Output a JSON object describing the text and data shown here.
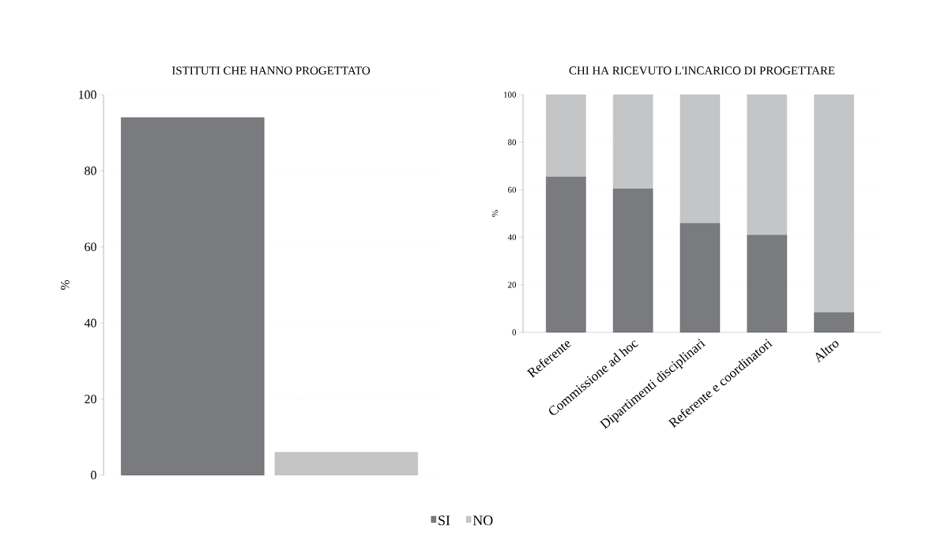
{
  "chart_data": [
    {
      "type": "bar",
      "title": "ISTITUTI CHE HANNO PROGETTATO",
      "ylabel": "%",
      "categories": [
        null,
        null
      ],
      "values": [
        94,
        6
      ],
      "colors": [
        "#7a7b7f",
        "#c4c5c7"
      ],
      "ylim": [
        0,
        100
      ],
      "yticks": [
        0,
        20,
        40,
        60,
        80,
        100
      ],
      "grid": "y",
      "tick_labels": "y"
    },
    {
      "type": "bar",
      "title": "CHI HA RICEVUTO L'INCARICO DI PROGETTARE",
      "ylabel": "%",
      "categories": [
        "Referente",
        "Commissione ad hoc",
        "Dipartimenti disciplinari",
        "Referente e coordinatori",
        "Altro"
      ],
      "stacked": true,
      "series": [
        {
          "name": "SI",
          "color": "#7a7b7f",
          "values": [
            65.5,
            60.5,
            46,
            41,
            8.5
          ]
        },
        {
          "name": "NO",
          "color": "#c4c5c7",
          "values": [
            34.5,
            39.5,
            54,
            59,
            91.5
          ]
        }
      ],
      "ylim": [
        0,
        100
      ],
      "yticks": [
        0,
        20,
        40,
        60,
        80,
        100
      ],
      "grid": "y",
      "legend": "bottom"
    }
  ]
}
